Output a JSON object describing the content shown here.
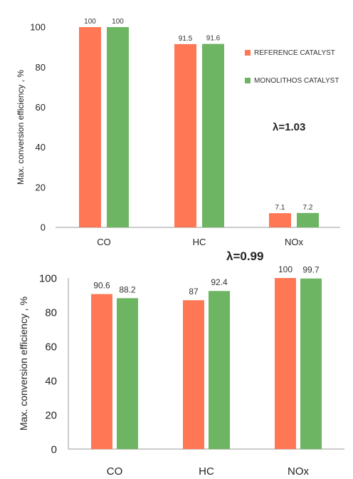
{
  "colors": {
    "reference": "#FF7755",
    "monolithos": "#6DB562"
  },
  "chart_data": [
    {
      "type": "bar",
      "categories": [
        "CO",
        "HC",
        "NOx"
      ],
      "series": [
        {
          "name": "REFERENCE CATALYST",
          "values": [
            100,
            91.5,
            7.1
          ]
        },
        {
          "name": "MONOLITHOS CATALYST",
          "values": [
            100,
            91.6,
            7.2
          ]
        }
      ],
      "value_labels": [
        [
          "100",
          "91.5",
          "7.1"
        ],
        [
          "100",
          "91.6",
          "7.2"
        ]
      ],
      "ylabel": "Max. conversion efficiency , %",
      "yticks": [
        0,
        20,
        40,
        60,
        80,
        100
      ],
      "ylim": [
        0,
        100
      ],
      "annotation": "λ=1.03",
      "legend": "right",
      "grid": false
    },
    {
      "type": "bar",
      "categories": [
        "CO",
        "HC",
        "NOx"
      ],
      "series": [
        {
          "values": [
            90.6,
            87,
            100
          ]
        },
        {
          "values": [
            88.2,
            92.4,
            99.7
          ]
        }
      ],
      "value_labels": [
        [
          "90.6",
          "87",
          "100"
        ],
        [
          "88.2",
          "92.4",
          "99.7"
        ]
      ],
      "ylabel": "Max. conversion efficiency , %",
      "yticks": [
        0,
        20,
        40,
        60,
        80,
        100
      ],
      "ylim": [
        0,
        100
      ],
      "annotation": "λ=0.99",
      "legend": "none",
      "grid": false
    }
  ]
}
